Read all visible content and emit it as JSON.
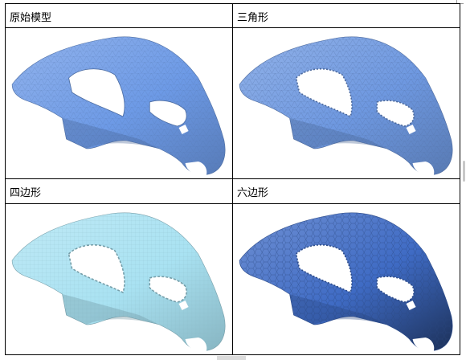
{
  "cells": [
    {
      "label": "原始模型",
      "style": "original",
      "tone": "#6d9ae6"
    },
    {
      "label": "三角形",
      "style": "triangle",
      "tone": "#6e98e0"
    },
    {
      "label": "四边形",
      "style": "quad",
      "tone": "#a9e2f2"
    },
    {
      "label": "六边形",
      "style": "hex",
      "tone": "#3f6bc4"
    }
  ]
}
